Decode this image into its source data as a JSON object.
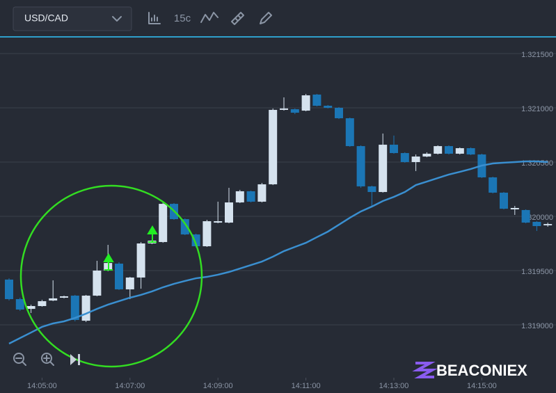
{
  "toolbar": {
    "symbol": "USD/CAD",
    "interval": "15c"
  },
  "watermark": "BEACONIEX",
  "chart_data": {
    "type": "candlestick",
    "x": [
      "14:04:15",
      "14:04:30",
      "14:04:45",
      "14:05:00",
      "14:05:15",
      "14:05:30",
      "14:05:45",
      "14:06:00",
      "14:06:15",
      "14:06:30",
      "14:06:45",
      "14:07:00",
      "14:07:15",
      "14:07:30",
      "14:07:45",
      "14:08:00",
      "14:08:15",
      "14:08:30",
      "14:08:45",
      "14:09:00",
      "14:09:15",
      "14:09:30",
      "14:09:45",
      "14:10:00",
      "14:10:15",
      "14:10:30",
      "14:10:45",
      "14:11:00",
      "14:11:15",
      "14:11:30",
      "14:11:45",
      "14:12:00",
      "14:12:15",
      "14:12:30",
      "14:12:45",
      "14:13:00",
      "14:13:15",
      "14:13:30",
      "14:13:45",
      "14:14:00",
      "14:14:15",
      "14:14:30",
      "14:14:45",
      "14:15:00",
      "14:15:15",
      "14:15:30",
      "14:15:45",
      "14:16:00",
      "14:16:15",
      "14:16:30"
    ],
    "open": [
      1.319417,
      1.319237,
      1.319147,
      1.319173,
      1.319224,
      1.31925,
      1.319269,
      1.319038,
      1.319269,
      1.3195,
      1.319564,
      1.319327,
      1.319436,
      1.31975,
      1.319763,
      1.320115,
      1.319974,
      1.319833,
      1.319724,
      1.319942,
      1.319942,
      1.320128,
      1.320231,
      1.320135,
      1.320295,
      1.320981,
      1.320987,
      1.320974,
      1.321122,
      1.321019,
      1.321,
      1.320904,
      1.320647,
      1.320276,
      1.320224,
      1.32066,
      1.320583,
      1.3205,
      1.320551,
      1.320577,
      1.320647,
      1.320577,
      1.320628,
      1.32057,
      1.320359,
      1.320218,
      1.320064,
      1.320058,
      1.319949,
      1.319917
    ],
    "high": [
      1.319429,
      1.31925,
      1.319186,
      1.319231,
      1.31941,
      1.319269,
      1.319276,
      1.319276,
      1.31959,
      1.319737,
      1.319577,
      1.319442,
      1.319763,
      1.319782,
      1.320135,
      1.320122,
      1.319981,
      1.31984,
      1.319968,
      1.320135,
      1.320263,
      1.320244,
      1.320237,
      1.320308,
      1.320994,
      1.321096,
      1.320994,
      1.321128,
      1.321128,
      1.321026,
      1.321006,
      1.32091,
      1.320654,
      1.320282,
      1.320763,
      1.320744,
      1.32059,
      1.32057,
      1.32059,
      1.320654,
      1.320654,
      1.320635,
      1.320635,
      1.320577,
      1.320365,
      1.320224,
      1.320096,
      1.320064,
      1.319955,
      1.319942
    ],
    "low": [
      1.319224,
      1.319128,
      1.319109,
      1.319167,
      1.319218,
      1.319244,
      1.319032,
      1.319026,
      1.319263,
      1.319494,
      1.319321,
      1.319237,
      1.319333,
      1.319744,
      1.319756,
      1.319968,
      1.319827,
      1.319712,
      1.319718,
      1.319936,
      1.319936,
      1.320122,
      1.320128,
      1.320128,
      1.320288,
      1.320974,
      1.320942,
      1.320968,
      1.321013,
      1.320994,
      1.320897,
      1.320641,
      1.320263,
      1.320083,
      1.320218,
      1.320577,
      1.320494,
      1.320417,
      1.320545,
      1.32057,
      1.32057,
      1.32057,
      1.320564,
      1.320353,
      1.320211,
      1.320064,
      1.320013,
      1.319936,
      1.319865,
      1.319904
    ],
    "close": [
      1.319237,
      1.319141,
      1.319173,
      1.319218,
      1.319244,
      1.319263,
      1.319045,
      1.319269,
      1.3195,
      1.31957,
      1.319327,
      1.319436,
      1.31975,
      1.319776,
      1.320115,
      1.319974,
      1.319833,
      1.319724,
      1.319955,
      1.319955,
      1.320128,
      1.320231,
      1.320135,
      1.320295,
      1.320981,
      1.320994,
      1.320955,
      1.321115,
      1.321019,
      1.321,
      1.320904,
      1.320647,
      1.320276,
      1.320224,
      1.32066,
      1.320583,
      1.3205,
      1.320551,
      1.320577,
      1.320647,
      1.320577,
      1.320628,
      1.32057,
      1.320359,
      1.320218,
      1.32007,
      1.320077,
      1.319942,
      1.31991,
      1.319929
    ],
    "up_color": "#d5e2ee",
    "down_color": "#1b76b5",
    "line": {
      "color": "#3a8fd0",
      "values": [
        1.318827,
        1.318878,
        1.318929,
        1.318981,
        1.319013,
        1.319032,
        1.319064,
        1.319103,
        1.319147,
        1.319186,
        1.319218,
        1.31925,
        1.319276,
        1.319308,
        1.319346,
        1.319378,
        1.319404,
        1.319429,
        1.319442,
        1.319462,
        1.319487,
        1.319519,
        1.319551,
        1.319583,
        1.319628,
        1.319679,
        1.319718,
        1.319756,
        1.319808,
        1.319859,
        1.319923,
        1.319987,
        1.320045,
        1.32009,
        1.320141,
        1.320179,
        1.320224,
        1.320288,
        1.32032,
        1.320353,
        1.320385,
        1.32041,
        1.320436,
        1.320468,
        1.320487,
        1.320494,
        1.3205,
        1.320506,
        1.320506,
        1.3205
      ]
    },
    "ylim": [
      1.318532,
      1.321641
    ],
    "yticks": [
      {
        "value": 1.319,
        "label": "1.319000"
      },
      {
        "value": 1.3195,
        "label": "1.319500"
      },
      {
        "value": 1.32,
        "label": "1.320000"
      },
      {
        "value": 1.3205,
        "label": "1.320500"
      },
      {
        "value": 1.321,
        "label": "1.321000"
      },
      {
        "value": 1.3215,
        "label": "1.321500"
      }
    ],
    "xticks": [
      "14:05:00",
      "14:07:00",
      "14:09:00",
      "14:11:00",
      "14:13:00",
      "14:15:00"
    ],
    "grid": true
  }
}
